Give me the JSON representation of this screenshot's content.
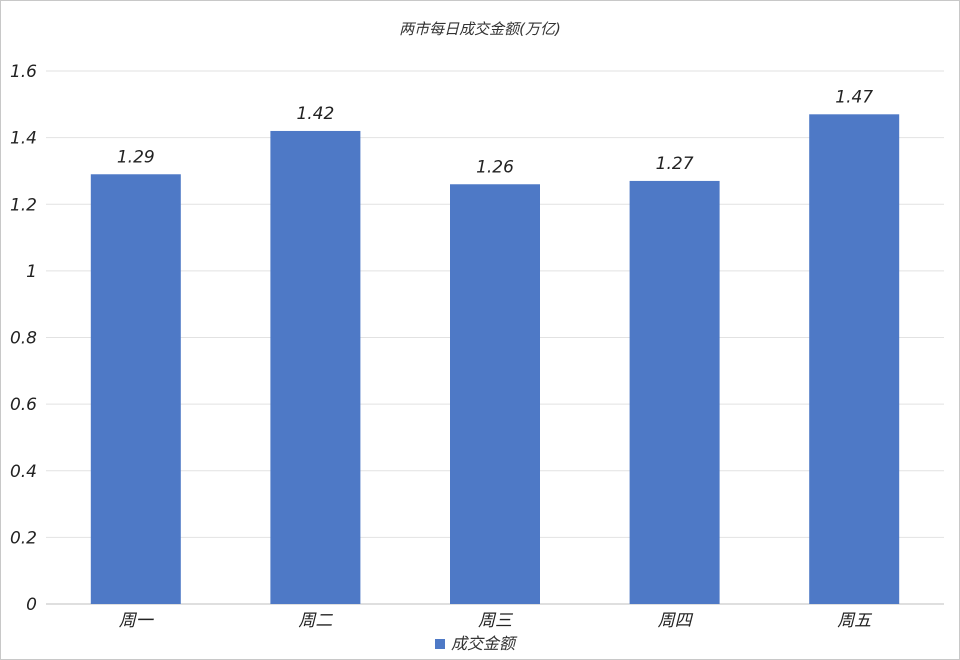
{
  "chart_data": {
    "type": "bar",
    "title": "两市每日成交金额(万亿)",
    "categories": [
      "周一",
      "周二",
      "周三",
      "周四",
      "周五"
    ],
    "series": [
      {
        "name": "成交金额",
        "values": [
          1.29,
          1.42,
          1.26,
          1.27,
          1.47
        ],
        "color": "#4e79c6"
      }
    ],
    "data_labels": [
      "1.29",
      "1.42",
      "1.26",
      "1.27",
      "1.47"
    ],
    "y_ticks": [
      "0",
      "0.2",
      "0.4",
      "0.6",
      "0.8",
      "1",
      "1.2",
      "1.4",
      "1.6"
    ],
    "ylim": [
      0,
      1.6
    ],
    "grid": true,
    "legend_position": "bottom"
  }
}
